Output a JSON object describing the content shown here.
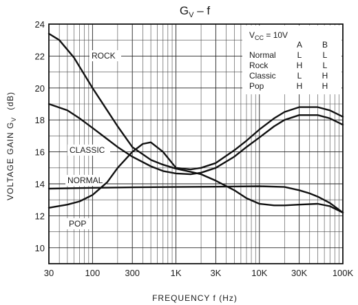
{
  "chart_data": {
    "type": "line",
    "title_main": "G",
    "title_sub": "V",
    "title_rest": " – f",
    "xlabel": "FREQUENCY   f   (Hz)",
    "ylabel_main": "VOLTAGE GAIN   G",
    "ylabel_sub": "V",
    "ylabel_unit": "(dB)",
    "x_scale": "log",
    "xlim": [
      30,
      100000
    ],
    "ylim": [
      9,
      24
    ],
    "x_ticks": [
      {
        "value": 30,
        "label": "30"
      },
      {
        "value": 100,
        "label": "100"
      },
      {
        "value": 300,
        "label": "300"
      },
      {
        "value": 1000,
        "label": "1K"
      },
      {
        "value": 3000,
        "label": "3K"
      },
      {
        "value": 10000,
        "label": "10K"
      },
      {
        "value": 30000,
        "label": "30K"
      },
      {
        "value": 100000,
        "label": "100K"
      }
    ],
    "y_ticks": [
      {
        "value": 10,
        "label": "10"
      },
      {
        "value": 12,
        "label": "12"
      },
      {
        "value": 14,
        "label": "14"
      },
      {
        "value": 16,
        "label": "16"
      },
      {
        "value": 18,
        "label": "18"
      },
      {
        "value": 20,
        "label": "20"
      },
      {
        "value": 22,
        "label": "22"
      },
      {
        "value": 24,
        "label": "24"
      }
    ],
    "grid": true,
    "series": [
      {
        "name": "ROCK",
        "x": [
          30,
          40,
          60,
          100,
          150,
          200,
          300,
          500,
          700,
          1000,
          1500,
          2000,
          3000,
          5000,
          7000,
          10000,
          15000,
          20000,
          30000,
          50000,
          70000,
          100000
        ],
        "y": [
          23.4,
          23.0,
          21.9,
          20.0,
          18.6,
          17.6,
          16.3,
          15.5,
          15.2,
          14.95,
          14.75,
          14.6,
          14.2,
          13.6,
          13.1,
          12.75,
          12.65,
          12.65,
          12.7,
          12.75,
          12.6,
          12.2
        ]
      },
      {
        "name": "CLASSIC",
        "x": [
          30,
          50,
          70,
          100,
          150,
          200,
          300,
          500,
          700,
          1000,
          1500,
          2000,
          3000,
          5000,
          7000,
          10000,
          15000,
          20000,
          30000,
          50000,
          70000,
          100000
        ],
        "y": [
          19.0,
          18.6,
          18.1,
          17.5,
          16.8,
          16.3,
          15.7,
          15.1,
          14.8,
          14.65,
          14.6,
          14.7,
          15.0,
          15.7,
          16.3,
          16.9,
          17.6,
          18.0,
          18.3,
          18.3,
          18.1,
          17.7
        ]
      },
      {
        "name": "NORMAL",
        "x": [
          30,
          50,
          100,
          300,
          1000,
          3000,
          10000,
          20000,
          30000,
          40000,
          50000,
          70000,
          100000
        ],
        "y": [
          13.7,
          13.72,
          13.75,
          13.78,
          13.8,
          13.82,
          13.85,
          13.8,
          13.6,
          13.4,
          13.2,
          12.8,
          12.2
        ]
      },
      {
        "name": "POP",
        "x": [
          30,
          50,
          70,
          100,
          150,
          200,
          300,
          400,
          500,
          700,
          1000,
          1500,
          2000,
          3000,
          5000,
          7000,
          10000,
          15000,
          20000,
          30000,
          50000,
          70000,
          100000
        ],
        "y": [
          12.5,
          12.7,
          12.9,
          13.3,
          14.1,
          15.0,
          16.0,
          16.5,
          16.6,
          16.0,
          15.0,
          14.9,
          15.0,
          15.3,
          16.1,
          16.7,
          17.4,
          18.1,
          18.5,
          18.8,
          18.8,
          18.6,
          18.2
        ]
      }
    ],
    "legend": {
      "header": "V",
      "header_sub": "CC",
      "header_value": " = 10V",
      "columns": [
        "A",
        "B"
      ],
      "rows": [
        {
          "name": "Normal",
          "a": "L",
          "b": "L"
        },
        {
          "name": "Rock",
          "a": "H",
          "b": "L"
        },
        {
          "name": "Classic",
          "a": "L",
          "b": "H"
        },
        {
          "name": "Pop",
          "a": "H",
          "b": "H"
        }
      ]
    }
  }
}
